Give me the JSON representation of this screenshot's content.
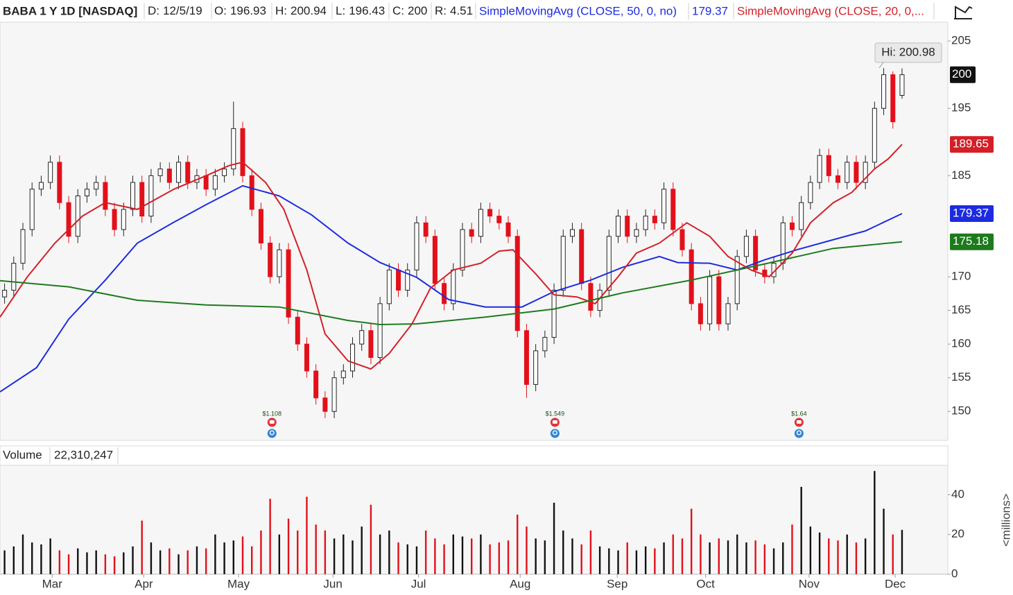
{
  "header": {
    "title": "BABA 1 Y 1D [NASDAQ]",
    "date_label": "D:",
    "date": "12/5/19",
    "open_label": "O:",
    "high_label": "H:",
    "low_label": "L:",
    "close_label": "C:",
    "range_label": "R:",
    "range": 4.51
  },
  "chart_data": [
    {
      "type": "candlestick",
      "x": [
        0,
        2,
        4,
        6,
        8,
        10,
        12,
        14,
        16,
        18,
        20,
        22,
        24,
        26,
        28,
        30,
        32,
        34,
        36,
        38,
        40,
        42,
        44,
        46,
        48,
        50,
        52,
        54,
        56,
        58,
        60,
        62,
        64,
        66,
        68,
        70,
        72,
        74,
        76,
        78,
        80,
        82,
        84,
        86,
        88,
        90,
        92,
        94,
        96,
        98,
        100,
        102,
        104,
        106,
        108,
        110,
        112,
        114,
        116,
        118,
        120,
        122,
        124,
        126,
        128,
        130,
        132,
        134,
        136,
        138,
        140,
        142,
        144,
        146,
        148,
        150,
        152,
        154,
        156,
        158,
        160,
        162,
        164,
        166,
        168,
        170,
        172,
        174,
        176,
        178,
        180,
        182,
        184,
        186,
        188,
        190,
        192,
        194,
        196
      ],
      "open": [
        167,
        168,
        172,
        177,
        183,
        184,
        187,
        181,
        176,
        182,
        183,
        184,
        180,
        177,
        180,
        184,
        179,
        185,
        186,
        184,
        187,
        184,
        185,
        183,
        185,
        186,
        192,
        185,
        180,
        175,
        170,
        174,
        164,
        160,
        156,
        152,
        150,
        155,
        156,
        160,
        162,
        158,
        166,
        171,
        168,
        171,
        178,
        176,
        169,
        166,
        171,
        177,
        176,
        180,
        179,
        178,
        176,
        162,
        154,
        159,
        161,
        168,
        176,
        177,
        169,
        165,
        168,
        176,
        179,
        176,
        177,
        179,
        178,
        183,
        177,
        174,
        166,
        163,
        170,
        163,
        166,
        173,
        176,
        171,
        170,
        172,
        178,
        177,
        181,
        184,
        188,
        185,
        184,
        187,
        184,
        187,
        195,
        200,
        196.93
      ],
      "high": [
        169,
        173,
        178,
        184,
        185,
        188,
        188,
        182,
        183,
        184,
        185,
        185,
        181,
        181,
        185,
        185,
        186,
        187,
        187,
        188,
        188,
        186,
        186,
        186,
        187,
        196,
        193,
        186,
        181,
        176,
        175,
        175,
        165,
        161,
        157,
        153,
        156,
        157,
        161,
        163,
        163,
        167,
        172,
        172,
        172,
        179,
        179,
        177,
        170,
        172,
        178,
        178,
        181,
        181,
        180,
        179,
        177,
        163,
        160,
        162,
        169,
        177,
        178,
        178,
        170,
        169,
        177,
        180,
        180,
        178,
        180,
        180,
        184,
        184,
        178,
        175,
        167,
        171,
        171,
        167,
        174,
        177,
        177,
        172,
        173,
        179,
        179,
        182,
        185,
        189,
        189,
        186,
        188,
        188,
        188,
        196,
        200.98,
        200.5,
        200.94
      ],
      "low": [
        166,
        167,
        171,
        176,
        182,
        183,
        180,
        175,
        175,
        181,
        182,
        179,
        176,
        176,
        179,
        178,
        178,
        184,
        183,
        183,
        183,
        183,
        182,
        182,
        184,
        185,
        184,
        179,
        174,
        169,
        169,
        163,
        159,
        155,
        151,
        149,
        149,
        154,
        155,
        159,
        157,
        157,
        165,
        167,
        167,
        170,
        175,
        168,
        165,
        165,
        170,
        175,
        175,
        178,
        177,
        175,
        161,
        152,
        153,
        158,
        160,
        167,
        175,
        168,
        164,
        164,
        167,
        175,
        175,
        175,
        176,
        177,
        177,
        176,
        173,
        165,
        162,
        162,
        162,
        162,
        165,
        172,
        170,
        169,
        169,
        171,
        176,
        176,
        180,
        183,
        184,
        183,
        183,
        183,
        183,
        186,
        194,
        192,
        196.43
      ],
      "close": [
        168,
        172,
        177,
        183,
        184,
        187,
        181,
        176,
        182,
        183,
        184,
        180,
        177,
        180,
        184,
        179,
        185,
        186,
        184,
        187,
        184,
        185,
        183,
        185,
        186,
        192,
        185,
        180,
        175,
        170,
        174,
        164,
        160,
        156,
        152,
        150,
        155,
        156,
        160,
        162,
        158,
        166,
        171,
        168,
        171,
        178,
        176,
        169,
        166,
        171,
        177,
        176,
        180,
        179,
        178,
        176,
        162,
        154,
        159,
        161,
        168,
        176,
        177,
        169,
        165,
        168,
        176,
        179,
        176,
        177,
        179,
        178,
        183,
        177,
        174,
        166,
        163,
        170,
        163,
        166,
        173,
        176,
        171,
        170,
        172,
        178,
        177,
        181,
        184,
        188,
        185,
        184,
        187,
        184,
        187,
        195,
        200,
        193,
        200
      ],
      "up_color": "#ffffff",
      "down_color": "#e3101a",
      "last_color": "#111111",
      "series": [
        {
          "name": "SimpleMovingAvg (CLOSE, 50, 0, no)",
          "color": "#1c2be0",
          "x": [
            -1,
            7,
            14,
            22,
            29,
            37,
            44,
            52,
            60,
            67,
            75,
            82,
            90,
            97,
            105,
            113,
            120,
            128,
            135,
            143,
            147,
            154,
            160,
            166,
            173,
            181,
            188,
            196
          ],
          "values": [
            152.9,
            156.5,
            163.7,
            169.5,
            175,
            178.1,
            180.7,
            183.5,
            182,
            179.2,
            175,
            172.1,
            169.9,
            166.6,
            165.5,
            165.5,
            167.8,
            169.5,
            171.4,
            173,
            172.1,
            172,
            171,
            172.5,
            174,
            175.5,
            176.8,
            179.37
          ]
        },
        {
          "name": "SimpleMovingAvg (CLOSE, 20, 0,...",
          "color": "#d41f27",
          "x": [
            -1,
            5,
            11,
            17,
            22,
            29,
            37,
            44,
            49,
            52,
            57,
            61,
            66,
            70,
            75,
            80,
            84,
            89,
            93,
            98,
            104,
            108,
            111,
            116,
            120,
            125,
            129,
            134,
            138,
            143,
            147,
            149,
            154,
            158,
            163,
            167,
            172,
            176,
            181,
            185,
            190,
            193,
            196
          ],
          "values": [
            164,
            170,
            175,
            179,
            181,
            180,
            183,
            185,
            186.5,
            187,
            184,
            180,
            171,
            161.5,
            157.5,
            156.3,
            158.6,
            163,
            168.3,
            171,
            172,
            173.8,
            174,
            170.4,
            167.3,
            167,
            166,
            170,
            173.5,
            175,
            177,
            178,
            176,
            173,
            171,
            170,
            173.5,
            178,
            181,
            182.5,
            186,
            187.5,
            189.65
          ]
        },
        {
          "color": "#1d7a1d",
          "x": [
            -1,
            14,
            29,
            44,
            60,
            75,
            82,
            90,
            105,
            120,
            135,
            150,
            166,
            181,
            196
          ],
          "values": [
            169.4,
            168.5,
            166.5,
            165.8,
            165.5,
            163.5,
            162.9,
            163,
            164,
            165.2,
            167.6,
            169.5,
            171.9,
            174.2,
            175.18
          ]
        }
      ],
      "xlim": [
        -1,
        206
      ],
      "xticks": [
        {
          "value": 10.4,
          "label": "Mar"
        },
        {
          "value": 30.4,
          "label": "Apr"
        },
        {
          "value": 51.1,
          "label": "May"
        },
        {
          "value": 71.7,
          "label": "Jun"
        },
        {
          "value": 90.4,
          "label": "Jul"
        },
        {
          "value": 112.6,
          "label": "Aug"
        },
        {
          "value": 133.8,
          "label": "Sep"
        },
        {
          "value": 153.1,
          "label": "Oct"
        },
        {
          "value": 175.7,
          "label": "Nov"
        },
        {
          "value": 194.5,
          "label": "Dec"
        }
      ],
      "ylim": [
        145.7,
        208
      ],
      "yticks": [
        150,
        155,
        160,
        165,
        170,
        185,
        195,
        205
      ],
      "annotation": "Hi: 200.98",
      "events": [
        {
          "x": 58.4,
          "label": "$1.108"
        },
        {
          "x": 120.2,
          "label": "$1.549"
        },
        {
          "x": 173.5,
          "label": "$1.64"
        }
      ]
    },
    {
      "type": "bar",
      "title": "Volume",
      "last_value_label": "22,310,247",
      "y_axis_label": "<millions>",
      "up_color": "#111111",
      "down_color": "#e3101a",
      "values": [
        12,
        14,
        20,
        16,
        15,
        18,
        12,
        10,
        13,
        11,
        12,
        10,
        9,
        11,
        14,
        27,
        16,
        12,
        13,
        10,
        12,
        14,
        13,
        20,
        16,
        17,
        19,
        14,
        22,
        38,
        20,
        28,
        22,
        39,
        25,
        22,
        18,
        20,
        17,
        24,
        35,
        20,
        22,
        16,
        15,
        14,
        22,
        18,
        15,
        20,
        19,
        18,
        20,
        15,
        16,
        17,
        30,
        24,
        18,
        17,
        36,
        22,
        18,
        15,
        22,
        14,
        13,
        12,
        16,
        12,
        14,
        13,
        16,
        20,
        18,
        33,
        20,
        16,
        18,
        17,
        20,
        16,
        17,
        15,
        13,
        16,
        25,
        44,
        24,
        21,
        18,
        17,
        20,
        16,
        18,
        52,
        33,
        20,
        22.310247
      ],
      "ylim": [
        0,
        54.5
      ],
      "yticks": [
        0,
        20,
        40
      ]
    }
  ]
}
